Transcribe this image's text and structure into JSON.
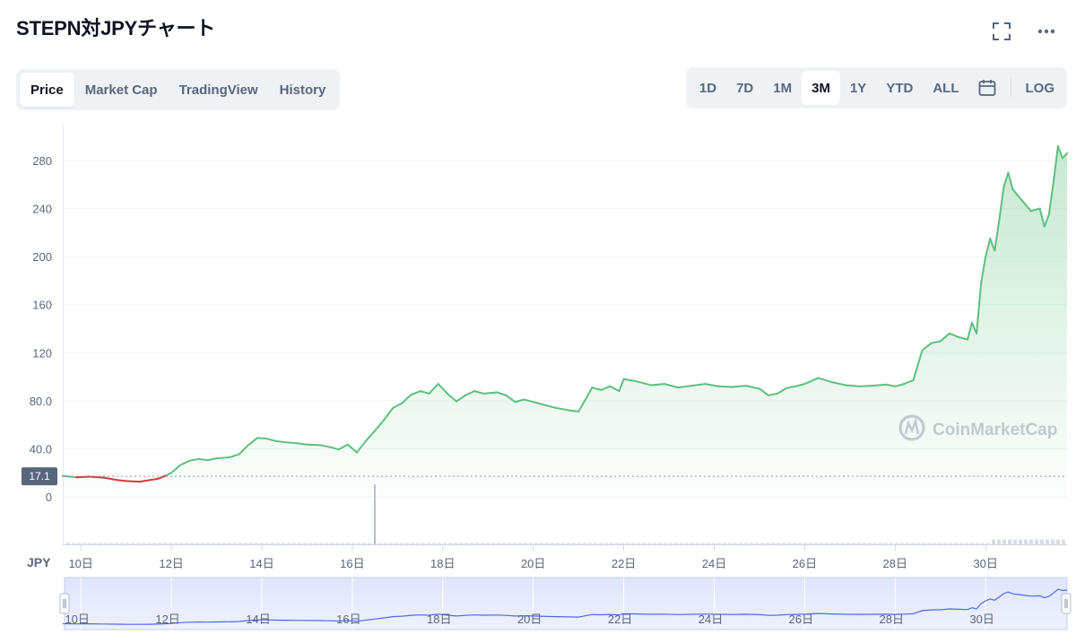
{
  "header": {
    "title": "STEPN対JPYチャート"
  },
  "tabs": [
    {
      "label": "Price",
      "active": true
    },
    {
      "label": "Market Cap",
      "active": false
    },
    {
      "label": "TradingView",
      "active": false
    },
    {
      "label": "History",
      "active": false
    }
  ],
  "ranges": [
    {
      "label": "1D",
      "active": false
    },
    {
      "label": "7D",
      "active": false
    },
    {
      "label": "1M",
      "active": false
    },
    {
      "label": "3M",
      "active": true
    },
    {
      "label": "1Y",
      "active": false
    },
    {
      "label": "YTD",
      "active": false
    },
    {
      "label": "ALL",
      "active": false
    }
  ],
  "log_label": "LOG",
  "watermark": "CoinMarketCap",
  "currency_label": "JPY",
  "colors": {
    "up": "#5fbf7f",
    "down": "#d63a3a",
    "navigator": "#4c6ae6",
    "text_muted": "#58667e"
  },
  "icons": {
    "expand": "expand-icon",
    "more": "more-icon",
    "calendar": "calendar-icon"
  },
  "chart_data": {
    "type": "area",
    "y_ticks": [
      "0",
      "40.0",
      "80.0",
      "120",
      "160",
      "200",
      "240",
      "280"
    ],
    "y_tick_values": [
      0,
      40,
      80,
      120,
      160,
      200,
      240,
      280
    ],
    "ylim": [
      0,
      295
    ],
    "x_ticks": [
      "10日",
      "12日",
      "14日",
      "16日",
      "18日",
      "20日",
      "22日",
      "24日",
      "26日",
      "28日",
      "30日"
    ],
    "x_tick_values": [
      10,
      12,
      14,
      16,
      18,
      20,
      22,
      24,
      26,
      28,
      30
    ],
    "xlim": [
      9.6,
      31.8
    ],
    "reference_price": 17.1,
    "reference_label": "17.1",
    "grid": true,
    "series": [
      {
        "values_x": [
          9.6,
          9.9,
          10.2,
          10.5,
          10.8,
          11.0,
          11.3,
          11.5,
          11.7,
          11.9,
          12.0,
          12.2,
          12.4,
          12.6,
          12.8,
          13.0,
          13.3,
          13.5,
          13.7,
          13.9,
          14.1,
          14.3,
          14.5,
          14.8,
          15.0,
          15.3,
          15.5,
          15.7,
          15.9,
          16.1,
          16.3,
          16.5,
          16.7,
          16.9,
          17.1,
          17.3,
          17.5,
          17.7,
          17.9,
          18.1,
          18.3,
          18.5,
          18.7,
          18.9,
          19.2,
          19.4,
          19.6,
          19.8,
          20.0,
          20.3,
          20.5,
          20.8,
          21.0,
          21.2,
          21.3,
          21.5,
          21.7,
          21.9,
          22.0,
          22.3,
          22.6,
          22.9,
          23.2,
          23.5,
          23.8,
          24.1,
          24.4,
          24.7,
          25.0,
          25.2,
          25.4,
          25.6,
          25.8,
          26.0,
          26.3,
          26.6,
          26.9,
          27.2,
          27.5,
          27.8,
          28.0,
          28.2,
          28.4,
          28.6,
          28.8,
          29.0,
          29.2,
          29.4,
          29.6,
          29.7,
          29.8,
          29.9,
          30.0,
          30.1,
          30.2,
          30.3,
          30.4,
          30.5,
          30.6,
          30.8,
          31.0,
          31.2,
          31.3,
          31.4,
          31.5,
          31.6,
          31.7,
          31.8
        ],
        "values": [
          17.5,
          16.2,
          16.8,
          16.0,
          14.0,
          13.2,
          12.6,
          13.8,
          15.0,
          18.0,
          20.0,
          26.5,
          30.0,
          31.5,
          30.5,
          32.0,
          33.0,
          35.5,
          43.0,
          49.0,
          48.5,
          46.5,
          45.5,
          44.5,
          43.5,
          43.0,
          41.5,
          39.5,
          43.5,
          37.0,
          46.5,
          55.0,
          64.0,
          74.0,
          78.0,
          85.0,
          88.0,
          86.0,
          94.0,
          86.0,
          79.5,
          84.5,
          88.0,
          86.0,
          87.0,
          84.5,
          79.0,
          81.0,
          79.0,
          76.0,
          74.0,
          72.0,
          71.0,
          84.0,
          91.0,
          89.0,
          92.0,
          88.0,
          98.0,
          96.0,
          93.0,
          94.0,
          91.0,
          92.5,
          94.0,
          92.0,
          91.5,
          92.5,
          90.0,
          84.5,
          86.0,
          90.5,
          92.0,
          94.0,
          99.0,
          95.5,
          93.0,
          92.0,
          92.5,
          93.5,
          92.0,
          94.0,
          97.0,
          122.0,
          128.0,
          129.5,
          136.0,
          133.0,
          131.0,
          145.0,
          136.0,
          178.0,
          200.0,
          215.0,
          205.0,
          230.0,
          258.0,
          270.0,
          256.0,
          247.0,
          238.0,
          240.0,
          225.0,
          235.0,
          262.0,
          292.0,
          282.0,
          286.0
        ]
      }
    ],
    "navigator": {
      "x_ticks": [
        "10日",
        "12日",
        "14日",
        "16日",
        "18日",
        "20日",
        "22日",
        "24日",
        "26日",
        "28日",
        "30日"
      ]
    }
  }
}
